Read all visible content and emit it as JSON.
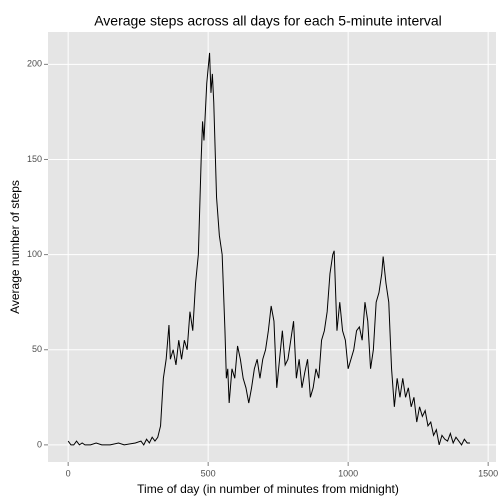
{
  "chart_data": {
    "type": "line",
    "title": "Average steps across all days for each 5-minute interval",
    "x_label": "Time of day (in number of minutes from midnight)",
    "y_label": "Average number of steps",
    "x": [
      0,
      10,
      20,
      30,
      40,
      50,
      60,
      80,
      100,
      120,
      150,
      180,
      200,
      240,
      260,
      270,
      280,
      290,
      300,
      310,
      320,
      330,
      340,
      350,
      360,
      365,
      375,
      385,
      395,
      405,
      415,
      425,
      435,
      445,
      455,
      465,
      475,
      480,
      485,
      495,
      505,
      510,
      515,
      520,
      530,
      540,
      550,
      560,
      565,
      570,
      575,
      585,
      595,
      605,
      615,
      625,
      635,
      645,
      655,
      665,
      675,
      685,
      695,
      705,
      715,
      725,
      735,
      745,
      755,
      765,
      775,
      785,
      795,
      805,
      815,
      825,
      835,
      845,
      855,
      865,
      875,
      885,
      895,
      905,
      915,
      925,
      935,
      945,
      950,
      960,
      970,
      980,
      990,
      1000,
      1010,
      1020,
      1030,
      1040,
      1050,
      1060,
      1070,
      1080,
      1090,
      1100,
      1110,
      1120,
      1125,
      1135,
      1145,
      1155,
      1165,
      1175,
      1185,
      1195,
      1205,
      1215,
      1225,
      1235,
      1245,
      1255,
      1265,
      1275,
      1285,
      1295,
      1305,
      1315,
      1325,
      1335,
      1345,
      1355,
      1365,
      1375,
      1385,
      1395,
      1405,
      1415,
      1425,
      1435
    ],
    "series": [
      {
        "name": "steps",
        "color": "#000000",
        "values": [
          2,
          0,
          0,
          2,
          0,
          1,
          0,
          0,
          1,
          0,
          0,
          1,
          0,
          1,
          2,
          0,
          3,
          1,
          4,
          2,
          4,
          10,
          35,
          45,
          63,
          45,
          50,
          42,
          55,
          45,
          55,
          50,
          70,
          60,
          85,
          100,
          150,
          170,
          160,
          190,
          206,
          185,
          195,
          180,
          130,
          110,
          100,
          60,
          35,
          40,
          22,
          40,
          35,
          52,
          45,
          35,
          30,
          22,
          30,
          40,
          45,
          35,
          45,
          50,
          60,
          73,
          65,
          30,
          45,
          60,
          42,
          45,
          55,
          65,
          35,
          45,
          30,
          38,
          45,
          25,
          30,
          40,
          35,
          55,
          60,
          70,
          90,
          100,
          102,
          60,
          75,
          60,
          55,
          40,
          45,
          50,
          60,
          62,
          55,
          75,
          65,
          40,
          50,
          75,
          80,
          90,
          99,
          85,
          75,
          40,
          20,
          35,
          25,
          35,
          25,
          30,
          20,
          25,
          12,
          20,
          15,
          18,
          10,
          12,
          5,
          8,
          0,
          5,
          3,
          2,
          6,
          1,
          4,
          2,
          0,
          3,
          1,
          1
        ]
      }
    ],
    "xlim": [
      -72,
      1528
    ],
    "ylim": [
      -9,
      217
    ],
    "xticks": [
      0,
      500,
      1000,
      1500
    ],
    "yticks": [
      0,
      50,
      100,
      150,
      200
    ],
    "grid": true
  }
}
